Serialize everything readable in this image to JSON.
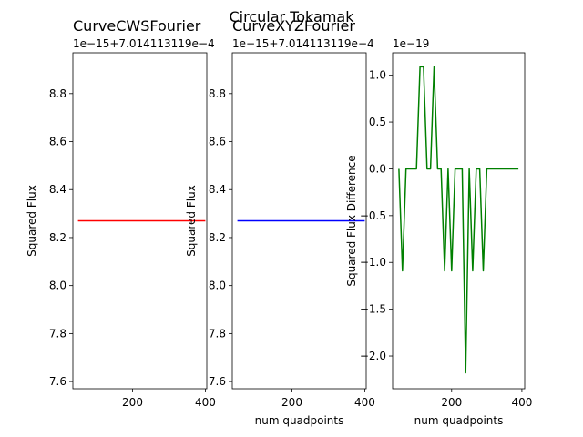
{
  "suptitle": "Circular Tokamak",
  "chart_data": [
    {
      "type": "line",
      "title": "CurveCWSFourier",
      "xlabel": "",
      "ylabel": "Squared Flux",
      "offset_label": "1e−15+7.014113119e−4",
      "xlim": [
        36,
        404
      ],
      "ylim": [
        7.57,
        8.97
      ],
      "xticks": [
        200,
        400
      ],
      "yticks": [
        7.6,
        7.8,
        8.0,
        8.2,
        8.4,
        8.6,
        8.8
      ],
      "color": "#ff0000",
      "series": [
        {
          "x": [
            50,
            400
          ],
          "y": [
            8.27,
            8.27
          ]
        }
      ]
    },
    {
      "type": "line",
      "title": "CurveXYZFourier",
      "xlabel": "num quadpoints",
      "ylabel": "Squared Flux",
      "offset_label": "1e−15+7.014113119e−4",
      "xlim": [
        36,
        404
      ],
      "ylim": [
        7.57,
        8.97
      ],
      "xticks": [
        200,
        400
      ],
      "yticks": [
        7.6,
        7.8,
        8.0,
        8.2,
        8.4,
        8.6,
        8.8
      ],
      "color": "#0000ff",
      "series": [
        {
          "x": [
            50,
            400
          ],
          "y": [
            8.27,
            8.27
          ]
        }
      ]
    },
    {
      "type": "line",
      "title": "",
      "xlabel": "num quadpoints",
      "ylabel": "Squared Flux Difference",
      "offset_label": "1e−19",
      "xlim": [
        32,
        408
      ],
      "ylim": [
        -2.35,
        1.24
      ],
      "xticks": [
        0,
        200,
        400
      ],
      "yticks": [
        -2.0,
        -1.5,
        -1.0,
        -0.5,
        0.0,
        0.5,
        1.0
      ],
      "color": "#008000",
      "series": [
        {
          "x": [
            50,
            60,
            70,
            80,
            90,
            100,
            110,
            120,
            130,
            140,
            150,
            160,
            170,
            180,
            190,
            200,
            210,
            220,
            230,
            240,
            250,
            260,
            270,
            280,
            290,
            300,
            310,
            320,
            330,
            340,
            350,
            360,
            370,
            380,
            390
          ],
          "y": [
            0,
            -1.09,
            0,
            0,
            0,
            0,
            1.09,
            1.09,
            0,
            0,
            1.09,
            0,
            0,
            -1.09,
            0,
            -1.09,
            0,
            0,
            0,
            -2.18,
            0,
            -1.09,
            0,
            0,
            -1.09,
            0,
            0,
            0,
            0,
            0,
            0,
            0,
            0,
            0,
            0
          ]
        }
      ]
    }
  ]
}
